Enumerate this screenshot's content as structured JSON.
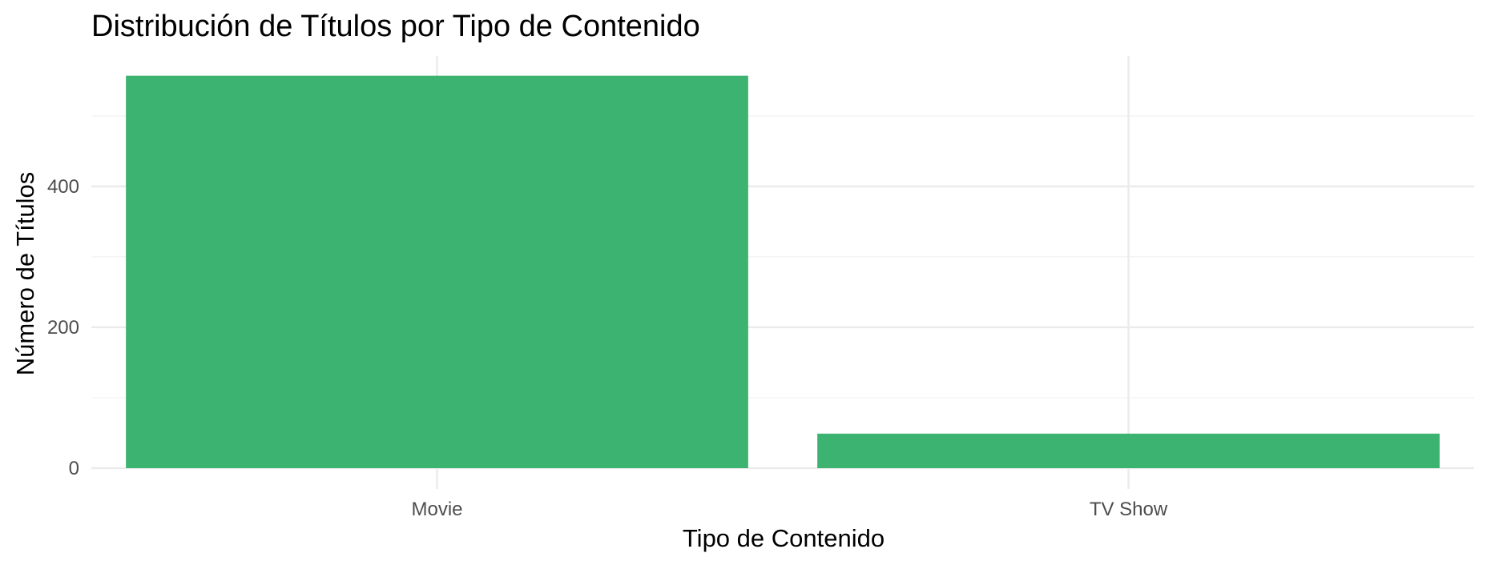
{
  "chart_data": {
    "type": "bar",
    "title": "Distribución de Títulos por Tipo de Contenido",
    "xlabel": "Tipo de Contenido",
    "ylabel": "Número de Títulos",
    "categories": [
      "Movie",
      "TV Show"
    ],
    "values": [
      557,
      49
    ],
    "ylim": [
      0,
      585
    ],
    "yticks": [
      0,
      200,
      400
    ],
    "yminor_ticks": [
      100,
      300,
      500
    ],
    "grid": true,
    "legend": "none",
    "colors": {
      "bar": "#3CB371",
      "grid_major": "#ebebeb",
      "grid_minor": "#f2f2f2",
      "tick_text": "#4d4d4d",
      "text": "#000000"
    }
  }
}
